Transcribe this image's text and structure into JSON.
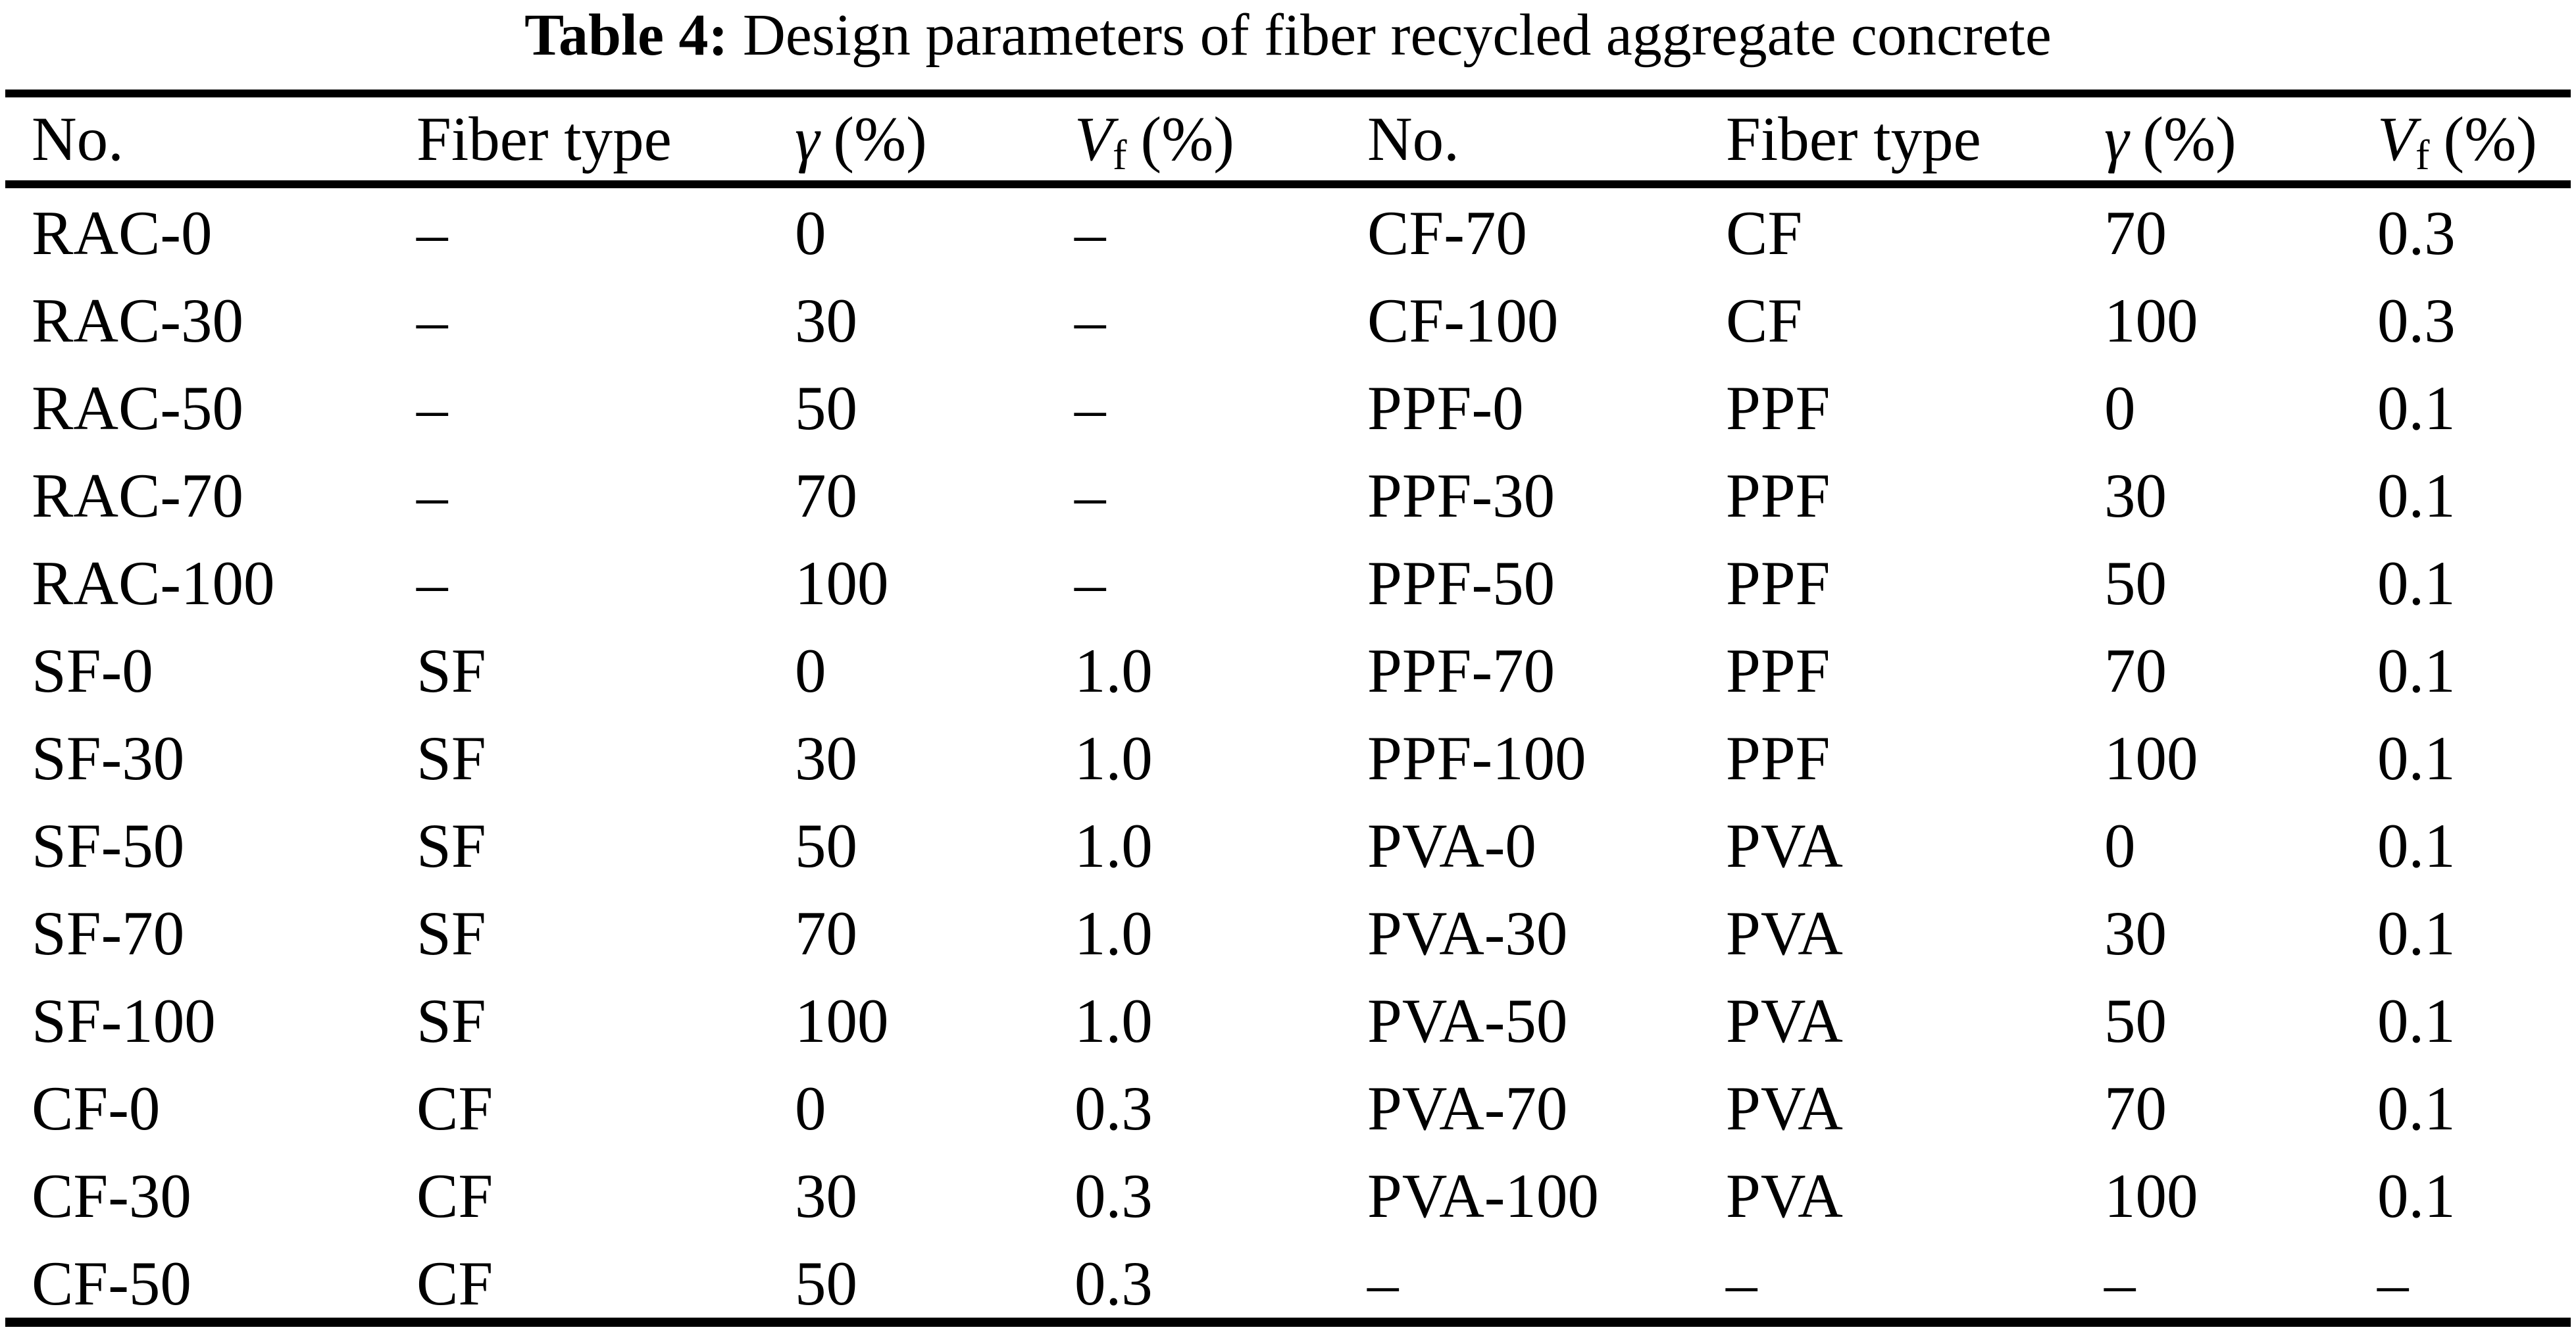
{
  "page": {
    "background_color": "#ffffff",
    "text_color": "#000000"
  },
  "caption": {
    "label": "Table 4:",
    "text": "Design parameters of fiber recycled aggregate concrete"
  },
  "header": {
    "no": "No.",
    "fiber_type": "Fiber type",
    "gamma_symbol": "γ",
    "gamma_unit": "(%)",
    "vf_symbol": "V",
    "vf_subscript": "f",
    "vf_unit": "(%)"
  },
  "rows": [
    {
      "left": {
        "no": "RAC-0",
        "fiber": "–",
        "gamma": "0",
        "vf": "–"
      },
      "right": {
        "no": "CF-70",
        "fiber": "CF",
        "gamma": "70",
        "vf": "0.3"
      }
    },
    {
      "left": {
        "no": "RAC-30",
        "fiber": "–",
        "gamma": "30",
        "vf": "–"
      },
      "right": {
        "no": "CF-100",
        "fiber": "CF",
        "gamma": "100",
        "vf": "0.3"
      }
    },
    {
      "left": {
        "no": "RAC-50",
        "fiber": "–",
        "gamma": "50",
        "vf": "–"
      },
      "right": {
        "no": "PPF-0",
        "fiber": "PPF",
        "gamma": "0",
        "vf": "0.1"
      }
    },
    {
      "left": {
        "no": "RAC-70",
        "fiber": "–",
        "gamma": "70",
        "vf": "–"
      },
      "right": {
        "no": "PPF-30",
        "fiber": "PPF",
        "gamma": "30",
        "vf": "0.1"
      }
    },
    {
      "left": {
        "no": "RAC-100",
        "fiber": "–",
        "gamma": "100",
        "vf": "–"
      },
      "right": {
        "no": "PPF-50",
        "fiber": "PPF",
        "gamma": "50",
        "vf": "0.1"
      }
    },
    {
      "left": {
        "no": "SF-0",
        "fiber": "SF",
        "gamma": "0",
        "vf": "1.0"
      },
      "right": {
        "no": "PPF-70",
        "fiber": "PPF",
        "gamma": "70",
        "vf": "0.1"
      }
    },
    {
      "left": {
        "no": "SF-30",
        "fiber": "SF",
        "gamma": "30",
        "vf": "1.0"
      },
      "right": {
        "no": "PPF-100",
        "fiber": "PPF",
        "gamma": "100",
        "vf": "0.1"
      }
    },
    {
      "left": {
        "no": "SF-50",
        "fiber": "SF",
        "gamma": "50",
        "vf": "1.0"
      },
      "right": {
        "no": "PVA-0",
        "fiber": "PVA",
        "gamma": "0",
        "vf": "0.1"
      }
    },
    {
      "left": {
        "no": "SF-70",
        "fiber": "SF",
        "gamma": "70",
        "vf": "1.0"
      },
      "right": {
        "no": "PVA-30",
        "fiber": "PVA",
        "gamma": "30",
        "vf": "0.1"
      }
    },
    {
      "left": {
        "no": "SF-100",
        "fiber": "SF",
        "gamma": "100",
        "vf": "1.0"
      },
      "right": {
        "no": "PVA-50",
        "fiber": "PVA",
        "gamma": "50",
        "vf": "0.1"
      }
    },
    {
      "left": {
        "no": "CF-0",
        "fiber": "CF",
        "gamma": "0",
        "vf": "0.3"
      },
      "right": {
        "no": "PVA-70",
        "fiber": "PVA",
        "gamma": "70",
        "vf": "0.1"
      }
    },
    {
      "left": {
        "no": "CF-30",
        "fiber": "CF",
        "gamma": "30",
        "vf": "0.3"
      },
      "right": {
        "no": "PVA-100",
        "fiber": "PVA",
        "gamma": "100",
        "vf": "0.1"
      }
    },
    {
      "left": {
        "no": "CF-50",
        "fiber": "CF",
        "gamma": "50",
        "vf": "0.3"
      },
      "right": {
        "no": "–",
        "fiber": "–",
        "gamma": "–",
        "vf": "–"
      }
    }
  ]
}
